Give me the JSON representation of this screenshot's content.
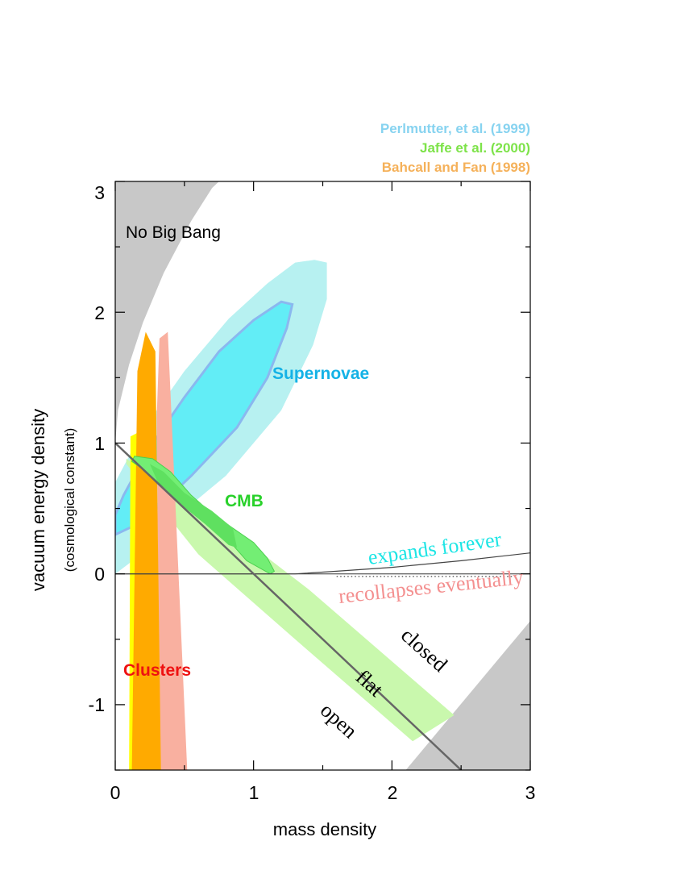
{
  "chart_data": {
    "type": "area",
    "xlabel": "mass density",
    "ylabel": "vacuum energy density",
    "ylabel_sub": "(cosmological constant)",
    "xlim": [
      0,
      3
    ],
    "ylim": [
      -1.5,
      3
    ],
    "xticks": [
      "0",
      "1",
      "2",
      "3"
    ],
    "yticks": [
      "-1",
      "0",
      "1",
      "2",
      "3"
    ],
    "xtick_values": [
      0,
      1,
      2,
      3
    ],
    "ytick_values": [
      -1,
      0,
      1,
      2,
      3
    ],
    "legend": [
      {
        "label": "Perlmutter, et al. (1999)",
        "color": "#87d3f0"
      },
      {
        "label": "Jaffe  et al.  (2000)",
        "color": "#7ee34a"
      },
      {
        "label": "Bahcall and Fan (1998)",
        "color": "#f5b15a"
      }
    ],
    "labels": {
      "no_big_bang": "No Big Bang",
      "supernovae": "Supernovae",
      "cmb": "CMB",
      "clusters": "Clusters",
      "expands_forever": "expands forever",
      "recollapses_eventually": "recollapses eventually",
      "closed": "closed",
      "flat": "flat",
      "open": "open"
    },
    "colors": {
      "no_big_bang": "#c8c8c8",
      "supernovae_outer": "#b7f1f1",
      "supernovae_inner": "#62edf6",
      "supernovae_edge": "#8ab8ef",
      "supernovae_label": "#14b2e6",
      "cmb_band": "#c9f8ad",
      "cmb_region": "#73ee74",
      "cmb_label": "#28d12a",
      "clusters_yellow": "#ffff00",
      "clusters_orange": "#ffaa00",
      "clusters_pink": "#f9b0a0",
      "clusters_label": "#ee1111",
      "expands_forever": "#1de5e5",
      "recollapses_eventually": "#f49090"
    },
    "regions": {
      "no_big_bang": [
        [
          0,
          1.0
        ],
        [
          0.02,
          1.25
        ],
        [
          0.1,
          1.6
        ],
        [
          0.2,
          1.92
        ],
        [
          0.35,
          2.3
        ],
        [
          0.55,
          2.7
        ],
        [
          0.7,
          2.95
        ],
        [
          0.75,
          3.0
        ],
        [
          0,
          3.0
        ]
      ],
      "no_big_bang_lower_right": [
        [
          2.1,
          -1.5
        ],
        [
          3.0,
          -0.36
        ],
        [
          3.0,
          -1.5
        ]
      ],
      "supernovae_outer": [
        [
          0,
          0.0
        ],
        [
          0.1,
          0.08
        ],
        [
          0.4,
          0.4
        ],
        [
          0.8,
          0.75
        ],
        [
          1.2,
          1.25
        ],
        [
          1.43,
          1.75
        ],
        [
          1.53,
          2.1
        ],
        [
          1.53,
          2.38
        ],
        [
          1.44,
          2.4
        ],
        [
          1.3,
          2.38
        ],
        [
          1.1,
          2.22
        ],
        [
          0.82,
          1.95
        ],
        [
          0.5,
          1.55
        ],
        [
          0.2,
          1.1
        ],
        [
          0,
          0.7
        ]
      ],
      "supernovae_inner": [
        [
          0,
          0.3
        ],
        [
          0.2,
          0.4
        ],
        [
          0.55,
          0.75
        ],
        [
          0.88,
          1.12
        ],
        [
          1.1,
          1.5
        ],
        [
          1.24,
          1.88
        ],
        [
          1.28,
          2.06
        ],
        [
          1.2,
          2.08
        ],
        [
          1.0,
          1.94
        ],
        [
          0.75,
          1.7
        ],
        [
          0.5,
          1.35
        ],
        [
          0.24,
          0.95
        ],
        [
          0.06,
          0.6
        ],
        [
          0,
          0.45
        ]
      ],
      "cmb_band": [
        [
          0.08,
          0.88
        ],
        [
          0.7,
          0.45
        ],
        [
          1.4,
          -0.12
        ],
        [
          2.45,
          -1.08
        ],
        [
          2.15,
          -1.28
        ],
        [
          1.3,
          -0.5
        ],
        [
          0.6,
          0.15
        ],
        [
          0.08,
          0.84
        ]
      ],
      "cmb_region": [
        [
          0.14,
          0.9
        ],
        [
          0.27,
          0.88
        ],
        [
          0.4,
          0.78
        ],
        [
          0.55,
          0.6
        ],
        [
          0.7,
          0.46
        ],
        [
          0.85,
          0.35
        ],
        [
          1.0,
          0.24
        ],
        [
          1.1,
          0.12
        ],
        [
          1.15,
          0.02
        ],
        [
          1.12,
          0.0
        ],
        [
          0.95,
          0.1
        ],
        [
          0.8,
          0.28
        ],
        [
          0.6,
          0.45
        ],
        [
          0.4,
          0.62
        ],
        [
          0.2,
          0.8
        ],
        [
          0.12,
          0.86
        ]
      ],
      "cmb_core": [
        [
          0.25,
          0.84
        ],
        [
          0.35,
          0.78
        ],
        [
          0.5,
          0.62
        ],
        [
          0.7,
          0.48
        ],
        [
          0.85,
          0.35
        ],
        [
          0.88,
          0.2
        ],
        [
          0.82,
          0.22
        ],
        [
          0.65,
          0.38
        ],
        [
          0.45,
          0.55
        ],
        [
          0.3,
          0.72
        ]
      ],
      "clusters_yellow": [
        [
          0.1,
          -1.5
        ],
        [
          0.2,
          -1.5
        ],
        [
          0.2,
          1.1
        ],
        [
          0.11,
          1.05
        ]
      ],
      "clusters_orange": [
        [
          0.12,
          -1.5
        ],
        [
          0.33,
          -1.5
        ],
        [
          0.29,
          1.7
        ],
        [
          0.22,
          1.85
        ],
        [
          0.16,
          1.55
        ]
      ],
      "clusters_pink": [
        [
          0.32,
          -1.5
        ],
        [
          0.52,
          -1.5
        ],
        [
          0.38,
          1.85
        ],
        [
          0.32,
          1.8
        ],
        [
          0.3,
          1.2
        ]
      ]
    },
    "lines": {
      "flat": [
        [
          0,
          1
        ],
        [
          2.5,
          -1.5
        ]
      ],
      "zero": [
        [
          0,
          0
        ],
        [
          3,
          0
        ]
      ],
      "expand_boundary": [
        [
          0,
          0
        ],
        [
          1.0,
          0
        ],
        [
          1.3,
          0
        ],
        [
          1.6,
          0.02
        ],
        [
          2.0,
          0.05
        ],
        [
          2.5,
          0.1
        ],
        [
          3.0,
          0.16
        ]
      ],
      "dotted": [
        [
          1.6,
          -0.02
        ],
        [
          2.9,
          -0.02
        ]
      ]
    }
  }
}
